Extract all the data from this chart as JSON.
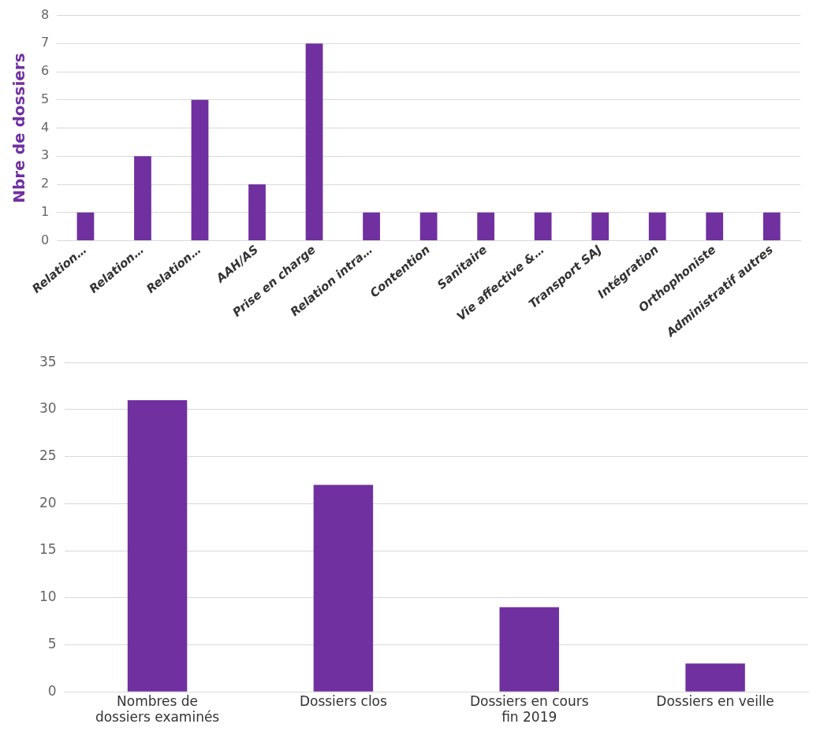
{
  "chart_data": [
    {
      "type": "bar",
      "ylabel": "Nbre de dossiers",
      "categories": [
        "Relation…",
        "Relation…",
        "Relation…",
        "AAH/AS",
        "Prise en charge",
        "Relation intra…",
        "Contention",
        "Sanitaire",
        "Vie affective &…",
        "Transport SAJ",
        "Intégration",
        "Orthophoniste",
        "Administratif autres"
      ],
      "values": [
        1,
        3,
        5,
        2,
        7,
        1,
        1,
        1,
        1,
        1,
        1,
        1,
        1
      ],
      "color": "#7030a0",
      "ylim": [
        0,
        8
      ],
      "yticks": [
        0,
        1,
        2,
        3,
        4,
        5,
        6,
        7,
        8
      ],
      "grid": "y",
      "legend": false
    },
    {
      "type": "bar",
      "categories": [
        "Nombres de dossiers examinés",
        "Dossiers clos",
        "Dossiers en cours fin 2019",
        "Dossiers en veille"
      ],
      "values": [
        31,
        22,
        9,
        3
      ],
      "color": "#7030a0",
      "ylim": [
        0,
        35
      ],
      "yticks": [
        0,
        5,
        10,
        15,
        20,
        25,
        30,
        35
      ],
      "grid": "y",
      "legend": false
    }
  ]
}
